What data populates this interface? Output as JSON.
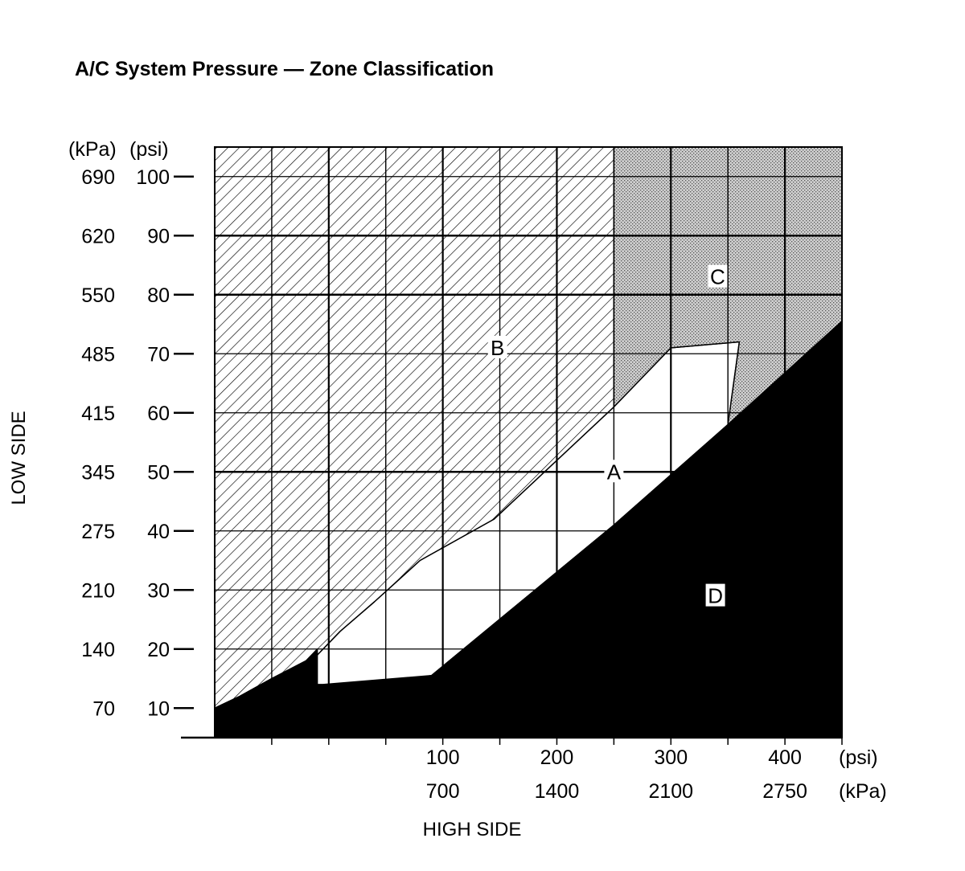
{
  "chart_data": {
    "type": "area",
    "title": "A/C System Pressure — Zone Classification",
    "xlabel": "HIGH SIDE",
    "ylabel": "LOW SIDE",
    "x_units": [
      "(psi)",
      "(kPa)"
    ],
    "y_units": [
      "(kPa)",
      "(psi)"
    ],
    "xlim": [
      -100,
      450
    ],
    "ylim": [
      5,
      105
    ],
    "x_ticks": [
      {
        "psi": 100,
        "kpa": "700"
      },
      {
        "psi": 200,
        "kpa": "1400"
      },
      {
        "psi": 300,
        "kpa": "2100"
      },
      {
        "psi": 400,
        "kpa": "2750"
      }
    ],
    "y_ticks": [
      {
        "psi": 10,
        "kpa": "70"
      },
      {
        "psi": 20,
        "kpa": "140"
      },
      {
        "psi": 30,
        "kpa": "210"
      },
      {
        "psi": 40,
        "kpa": "275"
      },
      {
        "psi": 50,
        "kpa": "345"
      },
      {
        "psi": 60,
        "kpa": "415"
      },
      {
        "psi": 70,
        "kpa": "485"
      },
      {
        "psi": 80,
        "kpa": "550"
      },
      {
        "psi": 90,
        "kpa": "620"
      },
      {
        "psi": 100,
        "kpa": "690"
      }
    ],
    "grid": true,
    "zones": [
      {
        "label": "A",
        "fill": "white",
        "label_at": [
          250,
          50
        ],
        "points": [
          [
            -100,
            10
          ],
          [
            -78,
            12
          ],
          [
            -50,
            15
          ],
          [
            -10,
            19
          ],
          [
            10,
            23
          ],
          [
            40,
            28
          ],
          [
            80,
            35
          ],
          [
            145,
            42
          ],
          [
            250,
            61
          ],
          [
            300,
            71
          ],
          [
            360,
            72
          ],
          [
            350,
            58
          ],
          [
            250,
            41
          ],
          [
            90,
            15.5
          ]
        ]
      },
      {
        "label": "B",
        "fill": "diagonal hatch",
        "label_at": [
          148,
          71
        ],
        "points": [
          [
            -100,
            105
          ],
          [
            250,
            105
          ],
          [
            250,
            61
          ],
          [
            145,
            42
          ],
          [
            80,
            35
          ],
          [
            40,
            28
          ],
          [
            10,
            23
          ],
          [
            -10,
            19
          ],
          [
            -50,
            15
          ],
          [
            -78,
            12
          ],
          [
            -100,
            10
          ]
        ]
      },
      {
        "label": "C",
        "fill": "stippled gray",
        "label_at": [
          341,
          83
        ],
        "points": [
          [
            250,
            105
          ],
          [
            450,
            105
          ],
          [
            450,
            75.5
          ],
          [
            350,
            58
          ],
          [
            360,
            72
          ],
          [
            300,
            71
          ],
          [
            250,
            61
          ]
        ]
      },
      {
        "label": "D",
        "fill": "black",
        "label_at": [
          339,
          29
        ],
        "points": [
          [
            -100,
            10
          ],
          [
            -78,
            12
          ],
          [
            -50,
            15
          ],
          [
            -20,
            18
          ],
          [
            -10,
            20
          ],
          [
            -10,
            14
          ],
          [
            -5,
            14
          ],
          [
            90,
            15.5
          ],
          [
            250,
            41
          ],
          [
            350,
            58
          ],
          [
            450,
            75.5
          ],
          [
            450,
            5
          ],
          [
            -100,
            5
          ]
        ]
      }
    ]
  }
}
